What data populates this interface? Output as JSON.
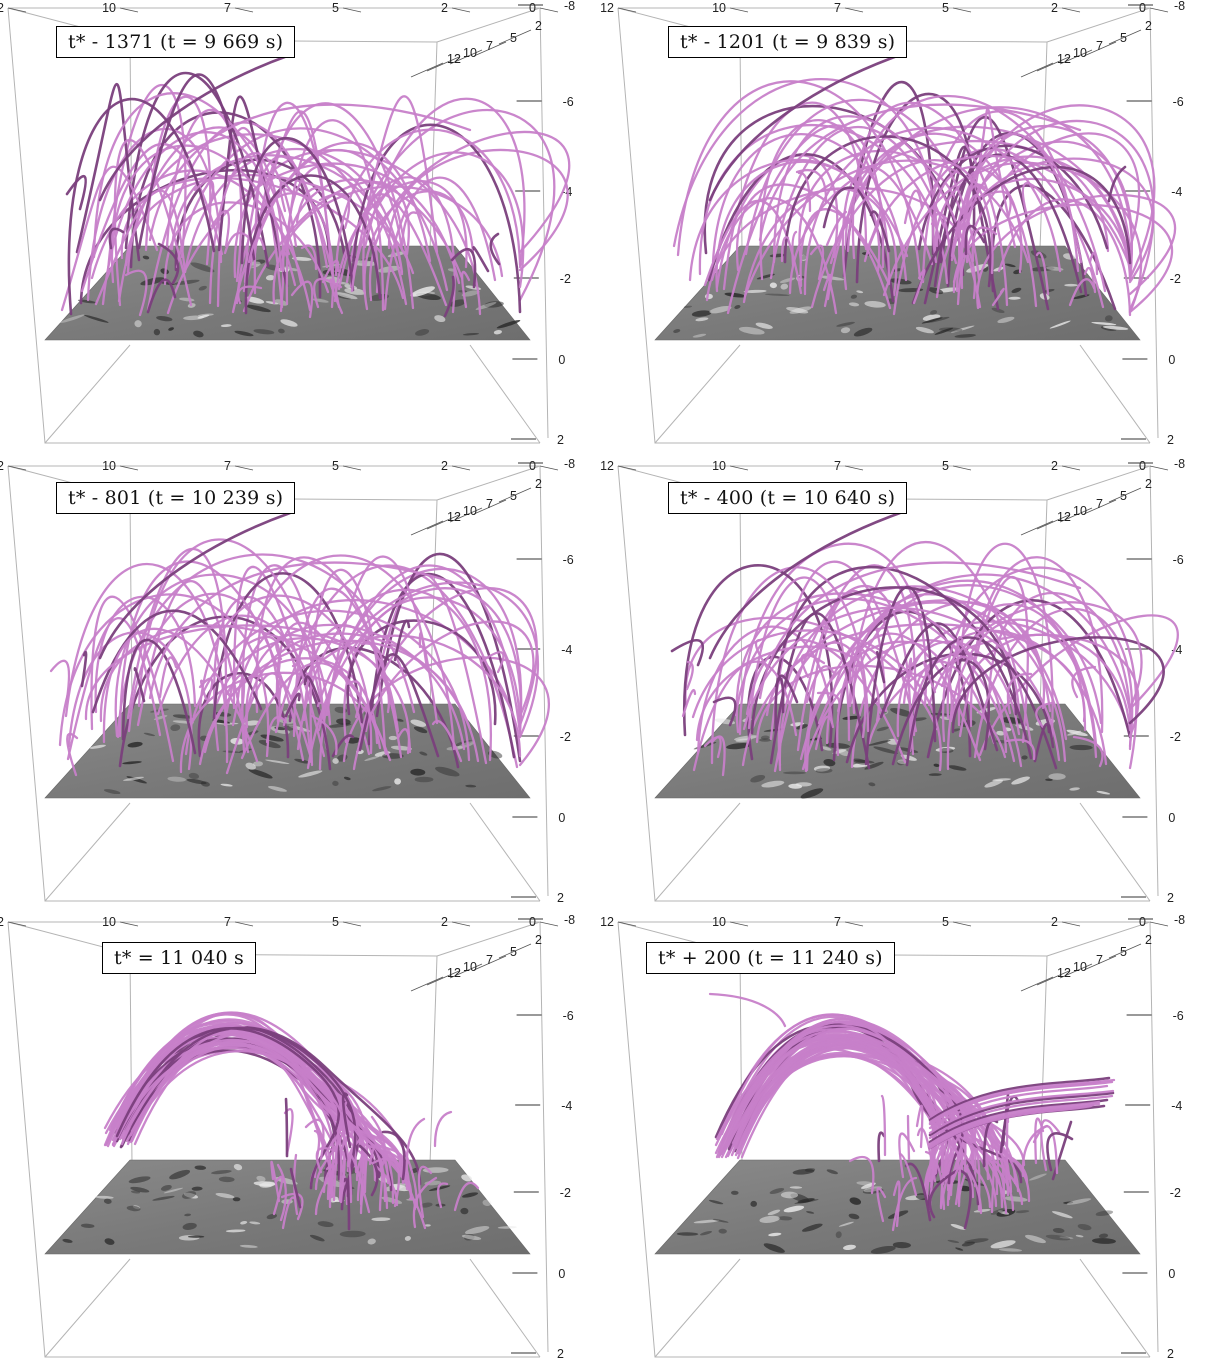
{
  "colors": {
    "field_line": "#c77fc9",
    "field_line_dark": "#7a3f7c",
    "photosphere": "#7a7a7a",
    "box_edge": "#b4b4b4",
    "tick_color": "#222222"
  },
  "axis_ticks": {
    "x_top": [
      "12",
      "10",
      "7",
      "5",
      "2",
      "0"
    ],
    "y_depth": [
      "2",
      "5",
      "7",
      "10",
      "12"
    ],
    "z_right": [
      "-8",
      "-6",
      "-4",
      "-2",
      "0",
      "2"
    ]
  },
  "panels": [
    {
      "label": "t* - 1371 (t = 9 669 s)",
      "variant": "loops"
    },
    {
      "label": "t* - 1201 (t = 9 839 s)",
      "variant": "loops"
    },
    {
      "label": "t* - 801 (t = 10 239 s)",
      "variant": "loops"
    },
    {
      "label": "t* - 400 (t = 10 640 s)",
      "variant": "loops"
    },
    {
      "label": "t* = 11 040 s",
      "variant": "rope"
    },
    {
      "label": "t* + 200 (t = 11 240 s)",
      "variant": "rope2"
    }
  ]
}
